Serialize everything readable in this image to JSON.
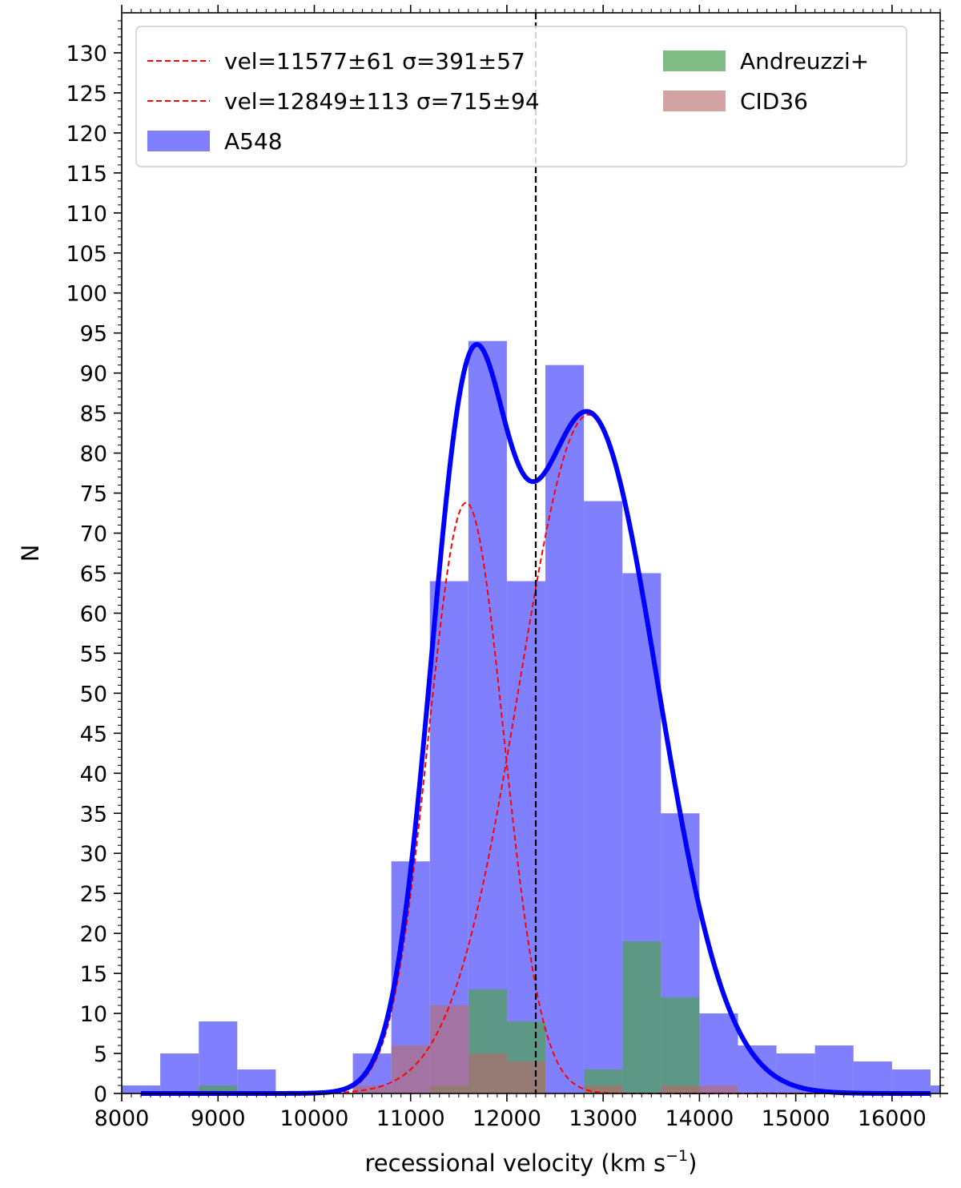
{
  "chart_data": {
    "type": "bar",
    "xlabel": "recessional velocity (km s",
    "xlabel_exponent": "−1",
    "xlabel_close": ")",
    "ylabel": "N",
    "xlim": [
      8000,
      16500
    ],
    "ylim": [
      0,
      135
    ],
    "x_ticks": [
      8000,
      9000,
      10000,
      11000,
      12000,
      13000,
      14000,
      15000,
      16000
    ],
    "x_tick_labels": [
      "8000",
      "9000",
      "10000",
      "11000",
      "12000",
      "13000",
      "14000",
      "15000",
      "16000"
    ],
    "y_ticks": [
      0,
      5,
      10,
      15,
      20,
      25,
      30,
      35,
      40,
      45,
      50,
      55,
      60,
      65,
      70,
      75,
      80,
      85,
      90,
      95,
      100,
      105,
      110,
      115,
      120,
      125,
      130
    ],
    "y_tick_labels": [
      "0",
      "5",
      "10",
      "15",
      "20",
      "25",
      "30",
      "35",
      "40",
      "45",
      "50",
      "55",
      "60",
      "65",
      "70",
      "75",
      "80",
      "85",
      "90",
      "95",
      "100",
      "105",
      "110",
      "115",
      "120",
      "125",
      "130"
    ],
    "bin_edges": [
      8000,
      8400,
      8800,
      9200,
      9600,
      10000,
      10400,
      10800,
      11200,
      11600,
      12000,
      12400,
      12800,
      13200,
      13600,
      14000,
      14400,
      14800,
      15200,
      15600,
      16000,
      16400,
      16500
    ],
    "grid": false,
    "legend_position": "top",
    "series": [
      {
        "name": "A548",
        "kind": "histogram",
        "color": "#8080ff",
        "values": [
          1,
          5,
          9,
          3,
          0,
          0,
          5,
          29,
          64,
          94,
          64,
          91,
          74,
          65,
          35,
          10,
          6,
          5,
          6,
          4,
          3,
          1
        ]
      },
      {
        "name": "Andreuzzi+",
        "kind": "histogram",
        "color": "#4f9f56",
        "values": [
          0,
          0,
          1,
          0,
          0,
          0,
          0,
          0,
          1,
          13,
          9,
          0,
          3,
          19,
          12,
          0,
          0,
          0,
          0,
          0,
          0,
          0
        ]
      },
      {
        "name": "CID36",
        "kind": "histogram",
        "color": "#b86a6a",
        "values": [
          0,
          0,
          0,
          0,
          0,
          0,
          1,
          6,
          11,
          5,
          4,
          0,
          1,
          0,
          1,
          1,
          0,
          0,
          0,
          0,
          0,
          0
        ]
      },
      {
        "name": "vel=11577±61 σ=391±57",
        "kind": "gaussian",
        "mu": 11577,
        "sigma": 391,
        "amplitude": 73.8,
        "color": "#ff0000"
      },
      {
        "name": "vel=12849±113 σ=715±94",
        "kind": "gaussian",
        "mu": 12849,
        "sigma": 715,
        "amplitude": 84.8,
        "color": "#ff0000"
      }
    ],
    "sum_curve": {
      "color": "#0000ff",
      "x_range": [
        8200,
        16400
      ]
    },
    "vertical_line": {
      "x": 12300,
      "color": "#000000"
    },
    "legend": {
      "left": [
        "vel=11577±61 σ=391±57",
        "vel=12849±113 σ=715±94",
        "A548"
      ],
      "right": [
        "Andreuzzi+",
        "CID36"
      ]
    }
  }
}
